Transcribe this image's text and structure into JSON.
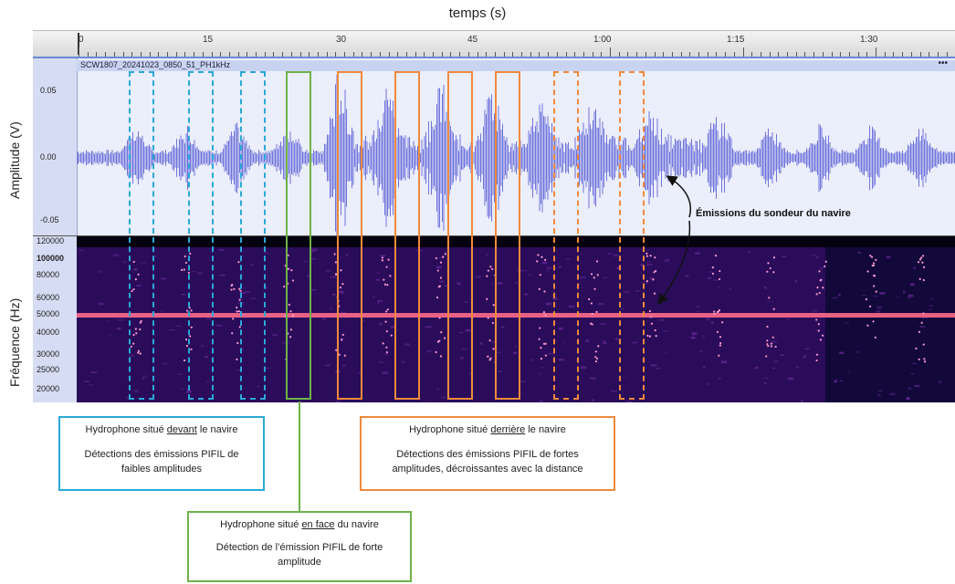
{
  "axis": {
    "time_title": "temps (s)",
    "time_ticks": [
      "0",
      "15",
      "30",
      "45",
      "1:00",
      "1:15",
      "1:30"
    ],
    "amplitude_title": "Amplitude (V)",
    "amplitude_ticks": [
      "0.05",
      "0.00",
      "-0.05"
    ],
    "frequency_title": "Fréquence (Hz)",
    "frequency_ticks": [
      "120000",
      "100000",
      "80000",
      "60000",
      "50000",
      "40000",
      "30000",
      "25000",
      "20000"
    ]
  },
  "track": {
    "name": "SCW1807_20241023_0850_51_PH1kHz",
    "menu": "•••"
  },
  "annotation": {
    "sonar": "Émissions du sondeur du navire"
  },
  "callouts": {
    "front": {
      "line1_pre": "Hydrophone situé ",
      "line1_u": "devant",
      "line1_post": " le navire",
      "line2": "Détections des émissions PIFIL de faibles amplitudes",
      "color": "#2aa9d6"
    },
    "behind": {
      "line1_pre": "Hydrophone situé ",
      "line1_u": "derrière",
      "line1_post": " le navire",
      "line2": "Détections des émissions PIFIL de fortes amplitudes, décroissantes avec la distance",
      "color": "#ef8a3c"
    },
    "facing": {
      "line1_pre": "Hydrophone situé ",
      "line1_u": "en face",
      "line1_post": " du navire",
      "line2": "Détection de l’émission PIFIL de forte amplitude",
      "color": "#6fb24a"
    }
  },
  "colors": {
    "waveform": "#5a5fd6",
    "spectrogram_band": "#ff6a8a"
  }
}
